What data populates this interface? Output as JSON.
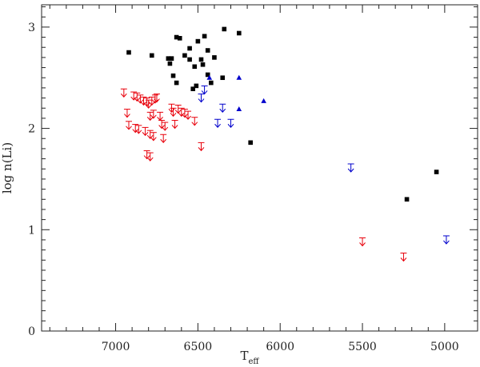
{
  "chart_data": {
    "type": "scatter",
    "xlabel": "T",
    "xlabel_sub": "eff",
    "ylabel": "log n(Li)",
    "xlim": [
      7450,
      4800
    ],
    "ylim": [
      0,
      3.22
    ],
    "x_reversed": true,
    "x_ticks": [
      7000,
      6500,
      6000,
      5500,
      5000
    ],
    "y_ticks": [
      0,
      1,
      2,
      3
    ],
    "grid": false,
    "series": [
      {
        "marker": "square",
        "color": "#000000",
        "points": [
          [
            6920,
            2.75
          ],
          [
            6780,
            2.72
          ],
          [
            6680,
            2.69
          ],
          [
            6660,
            2.69
          ],
          [
            6670,
            2.64
          ],
          [
            6630,
            2.9
          ],
          [
            6610,
            2.89
          ],
          [
            6580,
            2.72
          ],
          [
            6550,
            2.79
          ],
          [
            6550,
            2.68
          ],
          [
            6520,
            2.61
          ],
          [
            6500,
            2.86
          ],
          [
            6480,
            2.68
          ],
          [
            6470,
            2.63
          ],
          [
            6460,
            2.91
          ],
          [
            6440,
            2.77
          ],
          [
            6400,
            2.7
          ],
          [
            6340,
            2.98
          ],
          [
            6250,
            2.94
          ],
          [
            6650,
            2.52
          ],
          [
            6630,
            2.45
          ],
          [
            6530,
            2.39
          ],
          [
            6510,
            2.42
          ],
          [
            6440,
            2.53
          ],
          [
            6420,
            2.45
          ],
          [
            6350,
            2.5
          ],
          [
            6180,
            1.86
          ],
          [
            5050,
            1.57
          ],
          [
            5230,
            1.3
          ]
        ]
      },
      {
        "marker": "triangle",
        "color": "#0000cc",
        "points": [
          [
            6430,
            2.5
          ],
          [
            6250,
            2.5
          ],
          [
            6250,
            2.19
          ],
          [
            6100,
            2.27
          ]
        ]
      },
      {
        "marker": "upper-limit",
        "color": "#0000cc",
        "points": [
          [
            6480,
            2.3
          ],
          [
            6460,
            2.38
          ],
          [
            6350,
            2.2
          ],
          [
            6380,
            2.05
          ],
          [
            6300,
            2.05
          ],
          [
            5570,
            1.61
          ],
          [
            4990,
            0.9
          ]
        ]
      },
      {
        "marker": "upper-limit",
        "color": "#e8000b",
        "points": [
          [
            6950,
            2.35
          ],
          [
            6930,
            2.15
          ],
          [
            6920,
            2.03
          ],
          [
            6890,
            2.32
          ],
          [
            6870,
            2.31
          ],
          [
            6880,
            2.0
          ],
          [
            6860,
            1.99
          ],
          [
            6850,
            2.29
          ],
          [
            6830,
            2.27
          ],
          [
            6820,
            1.97
          ],
          [
            6810,
            2.26
          ],
          [
            6800,
            2.24
          ],
          [
            6790,
            2.12
          ],
          [
            6780,
            2.27
          ],
          [
            6770,
            2.14
          ],
          [
            6760,
            2.29
          ],
          [
            6750,
            2.3
          ],
          [
            6790,
            1.94
          ],
          [
            6770,
            1.92
          ],
          [
            6730,
            2.12
          ],
          [
            6720,
            2.04
          ],
          [
            6700,
            2.02
          ],
          [
            6710,
            1.9
          ],
          [
            6810,
            1.74
          ],
          [
            6790,
            1.72
          ],
          [
            6660,
            2.2
          ],
          [
            6650,
            2.16
          ],
          [
            6640,
            2.04
          ],
          [
            6620,
            2.19
          ],
          [
            6600,
            2.16
          ],
          [
            6580,
            2.15
          ],
          [
            6560,
            2.13
          ],
          [
            6520,
            2.07
          ],
          [
            6480,
            1.82
          ],
          [
            5500,
            0.88
          ],
          [
            5250,
            0.73
          ]
        ]
      }
    ]
  }
}
